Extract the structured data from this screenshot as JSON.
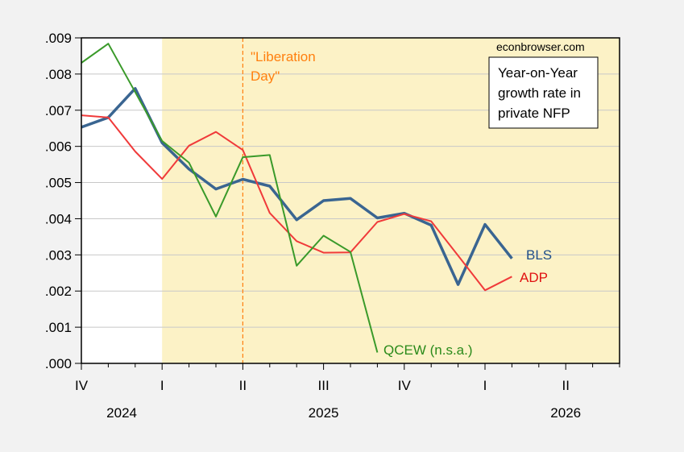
{
  "chart_data": {
    "type": "line",
    "title": "Year-on-Year growth rate in private NFP",
    "title_lines": [
      "Year-on-Year",
      "growth rate in",
      "private NFP"
    ],
    "source": "econbrowser.com",
    "xlabel": "",
    "ylabel": "",
    "ylim": [
      0,
      0.009
    ],
    "yticks": [
      ".000",
      ".001",
      ".002",
      ".003",
      ".004",
      ".005",
      ".006",
      ".007",
      ".008",
      ".009"
    ],
    "ytick_values": [
      0,
      0.001,
      0.002,
      0.003,
      0.004,
      0.005,
      0.006,
      0.007,
      0.008,
      0.009
    ],
    "grid": true,
    "x_months": [
      "2024-10",
      "2024-11",
      "2024-12",
      "2025-01",
      "2025-02",
      "2025-03",
      "2025-04",
      "2025-05",
      "2025-06",
      "2025-07",
      "2025-08",
      "2025-09",
      "2025-10",
      "2025-11",
      "2025-12",
      "2026-01",
      "2026-02",
      "2026-03",
      "2026-04",
      "2026-05",
      "2026-06"
    ],
    "xlim_month_index": [
      0,
      20
    ],
    "quarter_ticks": [
      {
        "label": "IV",
        "month_index": 0
      },
      {
        "label": "I",
        "month_index": 3
      },
      {
        "label": "II",
        "month_index": 6
      },
      {
        "label": "III",
        "month_index": 9
      },
      {
        "label": "IV",
        "month_index": 12
      },
      {
        "label": "I",
        "month_index": 15
      },
      {
        "label": "II",
        "month_index": 18
      }
    ],
    "year_labels": [
      {
        "label": "2024",
        "month_index": 1.5
      },
      {
        "label": "2025",
        "month_index": 9
      },
      {
        "label": "2026",
        "month_index": 18
      }
    ],
    "shaded_region": {
      "from_month_index": 3,
      "to_month_index": 20,
      "color": "#fcf2c6"
    },
    "event_line": {
      "month_index": 6,
      "label_lines": [
        "\"Liberation",
        "Day\""
      ],
      "color": "#ff7f0e"
    },
    "series": [
      {
        "name": "BLS",
        "label": "BLS",
        "color": "#3a6591",
        "width": 3.5,
        "start_month_index": 0,
        "values": [
          0.00653,
          0.0068,
          0.0076,
          0.0061,
          0.00537,
          0.00482,
          0.00509,
          0.0049,
          0.00397,
          0.0045,
          0.00456,
          0.00402,
          0.00415,
          0.00382,
          0.00218,
          0.00384,
          0.0029
        ]
      },
      {
        "name": "ADP",
        "label": "ADP",
        "color": "#f03a3a",
        "width": 2,
        "start_month_index": 0,
        "values": [
          0.00686,
          0.0068,
          0.00586,
          0.0051,
          0.00602,
          0.0064,
          0.0059,
          0.00416,
          0.00338,
          0.00306,
          0.00307,
          0.00391,
          0.00413,
          0.00393,
          0.00298,
          0.00202,
          0.0024
        ]
      },
      {
        "name": "QCEW (n.s.a.)",
        "label": "QCEW (n.s.a.)",
        "color": "#3a9a2a",
        "width": 2,
        "start_month_index": 0,
        "values": [
          0.00831,
          0.00884,
          0.0075,
          0.00615,
          0.00555,
          0.00406,
          0.0057,
          0.00576,
          0.0027,
          0.00353,
          0.00308,
          0.0003
        ]
      }
    ]
  }
}
